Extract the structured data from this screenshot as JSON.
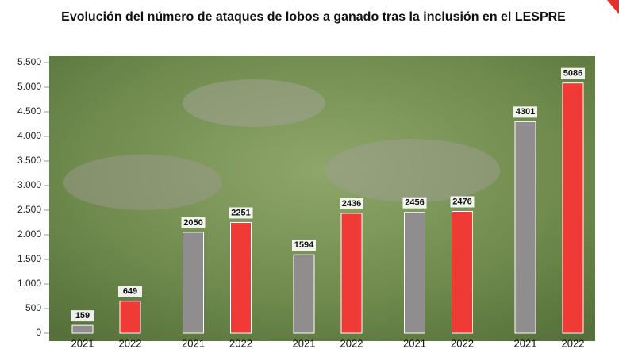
{
  "chart_data": {
    "type": "bar",
    "title": "Evolución del número de ataques de lobos a ganado tras la inclusión en el LESPRE",
    "categories": [
      "2021",
      "2022",
      "2021",
      "2022",
      "2021",
      "2022",
      "2021",
      "2022",
      "2021",
      "2022"
    ],
    "values": [
      159,
      649,
      2050,
      2251,
      1594,
      2436,
      2456,
      2476,
      4301,
      5086
    ],
    "colors": [
      "#8f8d8d",
      "#f03a36",
      "#8f8d8d",
      "#f03a36",
      "#8f8d8d",
      "#f03a36",
      "#8f8d8d",
      "#f03a36",
      "#8f8d8d",
      "#f03a36"
    ],
    "ylim": [
      0,
      5500
    ],
    "yticks": [
      0,
      500,
      {
        "value": 1000,
        "label": "1.000"
      },
      {
        "value": 1500,
        "label": "1.500"
      },
      {
        "value": 2000,
        "label": "2.000"
      },
      {
        "value": 2500,
        "label": "2.500"
      },
      {
        "value": 3000,
        "label": "3.000"
      },
      {
        "value": 3500,
        "label": "3.500"
      },
      {
        "value": 4000,
        "label": "4.000"
      },
      {
        "value": 4500,
        "label": "4.500"
      },
      {
        "value": 5000,
        "label": "5.000"
      },
      {
        "value": 5500,
        "label": "5.500"
      }
    ]
  }
}
